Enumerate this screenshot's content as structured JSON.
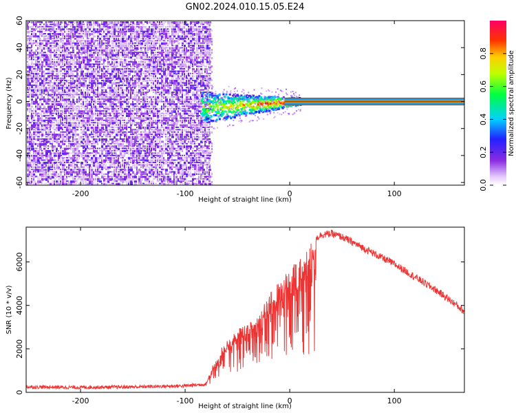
{
  "title": "GN02.2024.010.15.05.E24",
  "colors": {
    "spectrogram_low": "#7a1aff",
    "snr_line": "#ee3333",
    "axis": "#000000"
  },
  "chart_data": [
    {
      "type": "heatmap",
      "xlabel": "Height of straight line (km)",
      "ylabel": "Frequency (Hz)",
      "xlim": [
        -252,
        167
      ],
      "ylim": [
        -62,
        60
      ],
      "x_ticks": [
        -200,
        -100,
        0,
        100
      ],
      "x_tick_labels": [
        "-200",
        "-100",
        "0",
        "100"
      ],
      "y_ticks": [
        -60,
        -40,
        -20,
        0,
        20,
        40,
        60
      ],
      "y_tick_labels": [
        "-60",
        "-40",
        "-20",
        "0",
        "20",
        "40",
        "60"
      ],
      "noise_region_x": [
        -252,
        -77
      ],
      "transition_region_x": [
        -85,
        10
      ],
      "carrier_frequency": 0,
      "colorbar": {
        "label": "Normalized spectral amplitude",
        "range": [
          0,
          1
        ],
        "ticks": [
          0.0,
          0.2,
          0.4,
          0.6,
          0.8
        ],
        "tick_labels": [
          "0.0",
          "0.2",
          "0.4",
          "0.6",
          "0.8"
        ]
      }
    },
    {
      "type": "line",
      "xlabel": "Height of straight line (km)",
      "ylabel": "SNR (10 * v/v)",
      "xlim": [
        -252,
        167
      ],
      "ylim": [
        0,
        7600
      ],
      "x_ticks": [
        -200,
        -100,
        0,
        100
      ],
      "x_tick_labels": [
        "-200",
        "-100",
        "0",
        "100"
      ],
      "y_ticks": [
        0,
        2000,
        4000,
        6000
      ],
      "y_tick_labels": [
        "0",
        "2000",
        "4000",
        "6000"
      ],
      "series": [
        {
          "x": [
            -252,
            -200,
            -150,
            -100,
            -80,
            -70,
            -60,
            -50,
            -40,
            -30,
            -20,
            -10,
            0,
            10,
            20,
            30,
            40,
            50,
            60,
            80,
            100,
            120,
            140,
            160,
            167
          ],
          "y": [
            250,
            230,
            250,
            300,
            380,
            1500,
            2200,
            2700,
            3200,
            3500,
            4300,
            5000,
            5600,
            6300,
            6900,
            7250,
            7300,
            7150,
            6900,
            6400,
            5900,
            5300,
            4700,
            4000,
            3700
          ]
        }
      ]
    }
  ]
}
